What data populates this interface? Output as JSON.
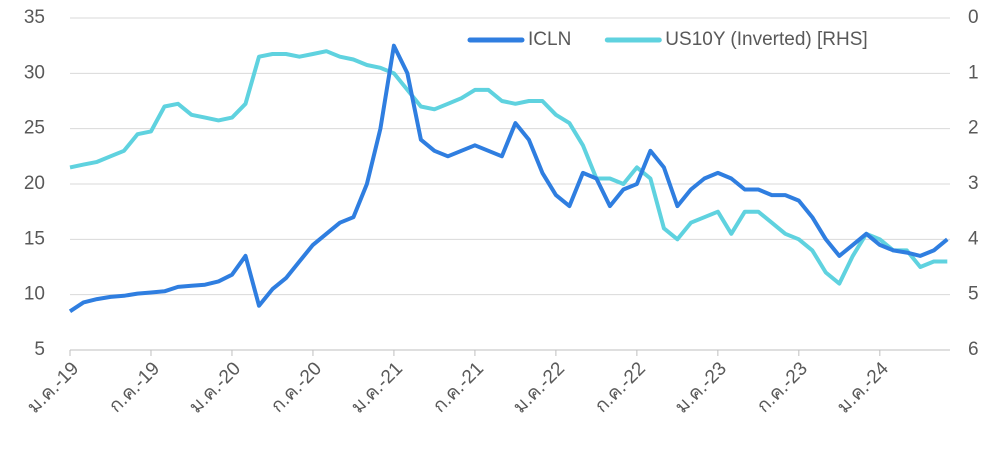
{
  "chart_data": {
    "type": "line",
    "x": [
      0,
      1,
      2,
      3,
      4,
      5,
      6,
      7,
      8,
      9,
      10,
      11,
      12,
      13,
      14,
      15,
      16,
      17,
      18,
      19,
      20,
      21,
      22,
      23,
      24,
      25,
      26,
      27,
      28,
      29,
      30,
      31,
      32,
      33,
      34,
      35,
      36,
      37,
      38,
      39,
      40,
      41,
      42,
      43,
      44,
      45,
      46,
      47,
      48,
      49,
      50,
      51,
      52,
      53,
      54,
      55,
      56,
      57,
      58,
      59,
      60,
      61,
      62,
      63,
      64,
      65
    ],
    "xlim": [
      0,
      65.2
    ],
    "xticks": [
      {
        "value": 0,
        "label": "ม.ค.-19"
      },
      {
        "value": 6,
        "label": "ก.ค.-19"
      },
      {
        "value": 12,
        "label": "ม.ค.-20"
      },
      {
        "value": 18,
        "label": "ก.ค.-20"
      },
      {
        "value": 24,
        "label": "ม.ค.-21"
      },
      {
        "value": 30,
        "label": "ก.ค.-21"
      },
      {
        "value": 36,
        "label": "ม.ค.-22"
      },
      {
        "value": 42,
        "label": "ก.ค.-22"
      },
      {
        "value": 48,
        "label": "ม.ค.-23"
      },
      {
        "value": 54,
        "label": "ก.ค.-23"
      },
      {
        "value": 60,
        "label": "ม.ค.-24"
      }
    ],
    "ylim": [
      5,
      35
    ],
    "yticks": [
      5,
      10,
      15,
      20,
      25,
      30,
      35
    ],
    "y2lim": [
      0,
      6
    ],
    "y2ticks": [
      0,
      1,
      2,
      3,
      4,
      5,
      6
    ],
    "y2_inverted": true,
    "grid": true,
    "legend": "top right",
    "series": [
      {
        "name": "ICLN",
        "color": "#2f7ee0",
        "values": [
          8.5,
          9.3,
          9.6,
          9.8,
          9.9,
          10.1,
          10.2,
          10.3,
          10.7,
          10.8,
          10.9,
          11.2,
          11.8,
          13.5,
          9,
          10.5,
          11.5,
          13,
          14.5,
          15.5,
          16.5,
          17,
          20,
          25,
          32.5,
          30,
          24,
          23,
          22.5,
          23,
          23.5,
          23,
          22.5,
          25.5,
          24,
          21,
          19,
          18,
          21,
          20.5,
          18,
          19.5,
          20,
          23,
          21.5,
          18,
          19.5,
          20.5,
          21,
          20.5,
          19.5,
          19.5,
          19,
          19,
          18.5,
          17,
          15,
          13.5,
          14.5,
          15.5,
          14.5,
          14,
          13.8,
          13.5,
          14,
          15
        ]
      },
      {
        "name": "US10Y (Inverted) [RHS]",
        "color": "#5fd2df",
        "axis": "y2",
        "values": [
          2.7,
          2.65,
          2.6,
          2.5,
          2.4,
          2.1,
          2.05,
          1.6,
          1.55,
          1.75,
          1.8,
          1.85,
          1.8,
          1.55,
          0.7,
          0.65,
          0.65,
          0.7,
          0.65,
          0.6,
          0.7,
          0.75,
          0.85,
          0.9,
          1.0,
          1.3,
          1.6,
          1.65,
          1.55,
          1.45,
          1.3,
          1.3,
          1.5,
          1.55,
          1.5,
          1.5,
          1.75,
          1.9,
          2.3,
          2.9,
          2.9,
          3.0,
          2.7,
          2.9,
          3.8,
          4.0,
          3.7,
          3.6,
          3.5,
          3.9,
          3.5,
          3.5,
          3.7,
          3.9,
          4.0,
          4.2,
          4.6,
          4.8,
          4.3,
          3.9,
          4.0,
          4.2,
          4.2,
          4.5,
          4.4,
          4.4
        ]
      }
    ]
  }
}
